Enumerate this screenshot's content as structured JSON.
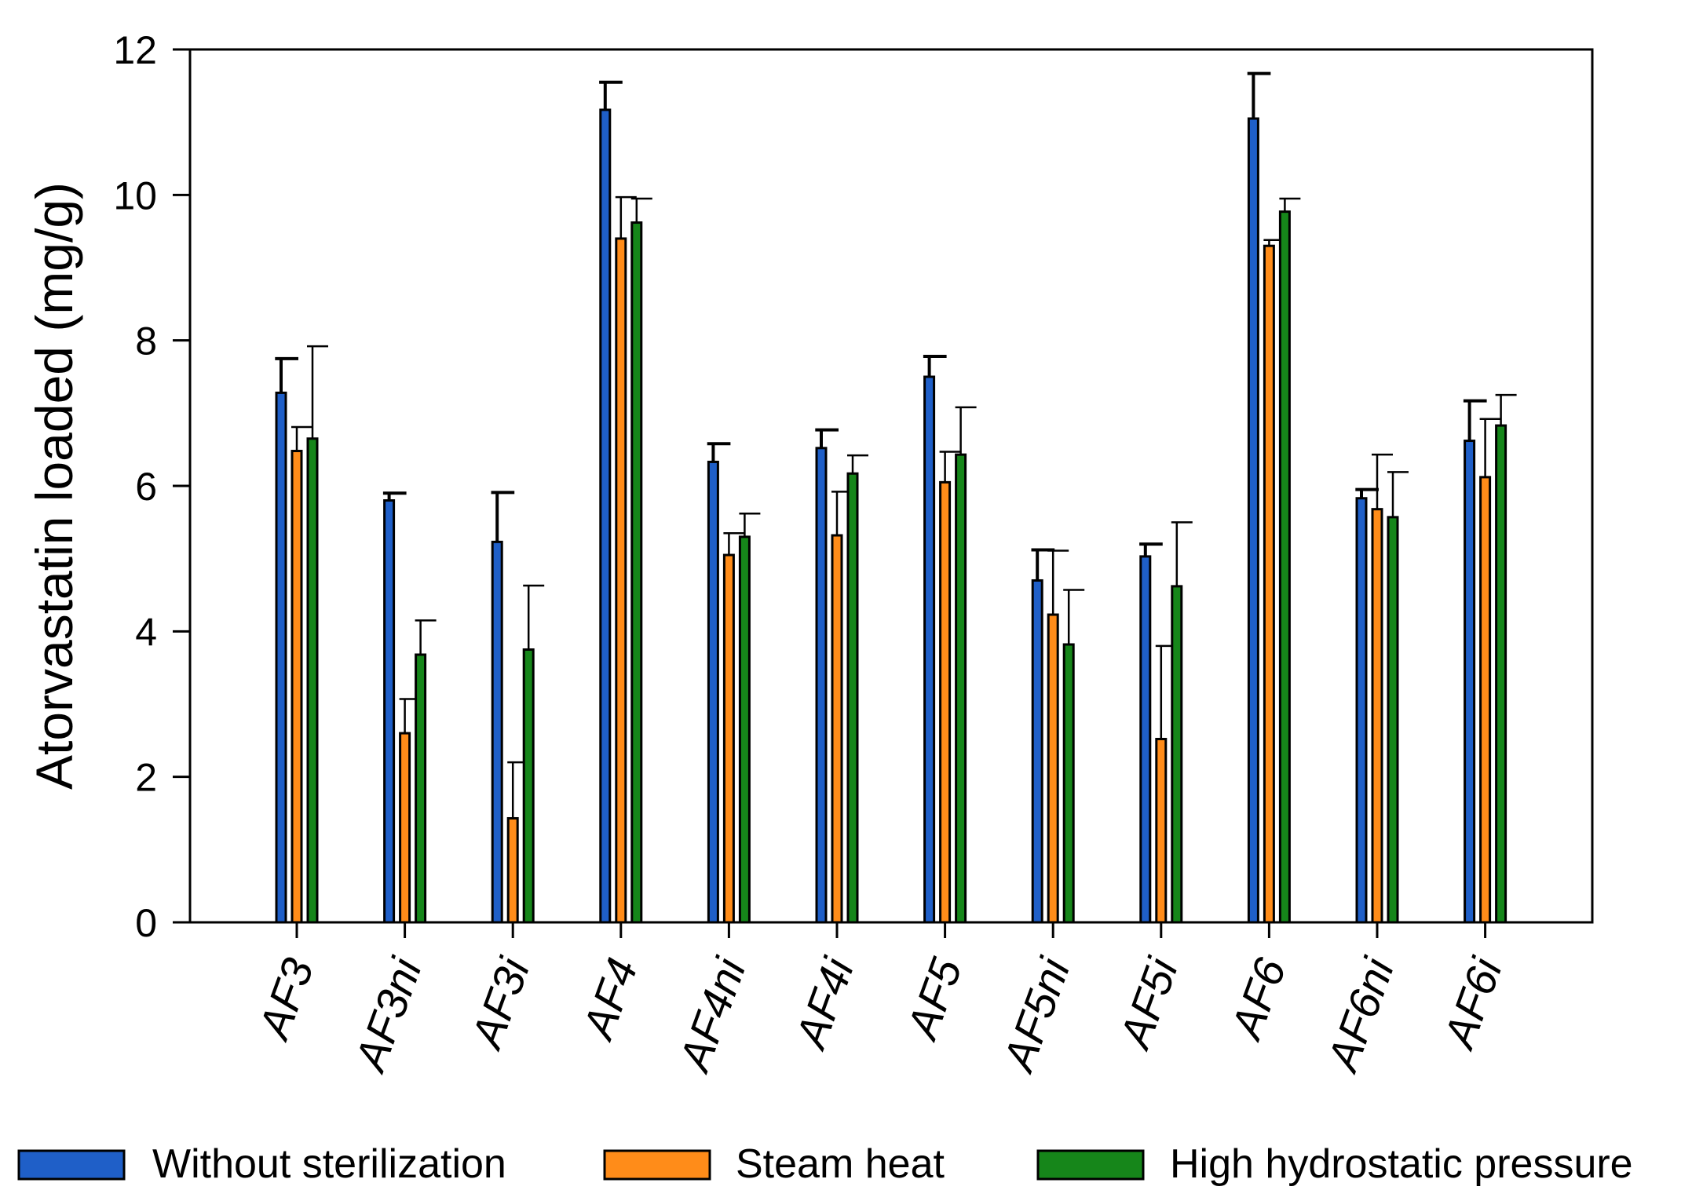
{
  "chart_data": {
    "type": "bar",
    "title": "",
    "xlabel": "",
    "ylabel": "Atorvastatin loaded (mg/g)",
    "ylim": [
      0,
      12
    ],
    "yticks": [
      0,
      2,
      4,
      6,
      8,
      10,
      12
    ],
    "grid": false,
    "legend_position": "bottom",
    "categories": [
      "AF3",
      "AF3ni",
      "AF3i",
      "AF4",
      "AF4ni",
      "AF4i",
      "AF5",
      "AF5ni",
      "AF5i",
      "AF6",
      "AF6ni",
      "AF6i"
    ],
    "series": [
      {
        "name": "Without sterilization",
        "color": "#1F5FC8",
        "values": [
          7.28,
          5.8,
          5.23,
          11.17,
          6.33,
          6.52,
          7.5,
          4.7,
          5.03,
          11.05,
          5.83,
          6.62
        ],
        "errors": [
          0.47,
          0.1,
          0.68,
          0.38,
          0.25,
          0.25,
          0.28,
          0.42,
          0.17,
          0.62,
          0.12,
          0.55
        ]
      },
      {
        "name": "Steam heat",
        "color": "#FF8C19",
        "values": [
          6.48,
          2.6,
          1.43,
          9.4,
          5.05,
          5.32,
          6.05,
          4.23,
          2.52,
          9.3,
          5.68,
          6.12
        ],
        "errors": [
          0.33,
          0.47,
          0.77,
          0.57,
          0.3,
          0.6,
          0.42,
          0.88,
          1.28,
          0.08,
          0.75,
          0.8
        ]
      },
      {
        "name": "High hydrostatic pressure",
        "color": "#16861A",
        "values": [
          6.65,
          3.68,
          3.75,
          9.62,
          5.3,
          6.17,
          6.43,
          3.82,
          4.62,
          9.77,
          5.57,
          6.83
        ],
        "errors": [
          1.27,
          0.47,
          0.88,
          0.33,
          0.32,
          0.25,
          0.65,
          0.75,
          0.88,
          0.18,
          0.62,
          0.42
        ]
      }
    ]
  }
}
